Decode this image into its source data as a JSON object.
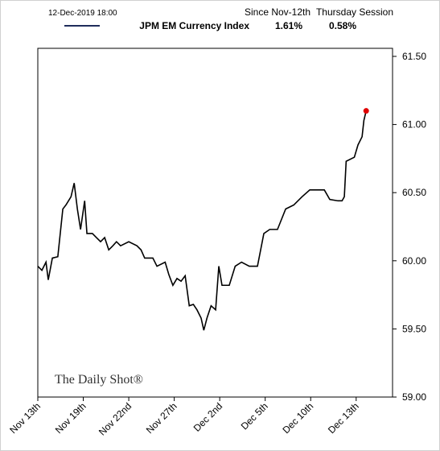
{
  "chart_data": {
    "type": "line",
    "timestamp": "12-Dec-2019 18:00",
    "headers": [
      "Since Nov-12th",
      "Thursday Session"
    ],
    "changes": [
      "1.61%",
      "0.58%"
    ],
    "watermark": "The Daily Shot®",
    "legend_color": "#1f2d5c",
    "last_point_color": "#e00000",
    "xlim": [
      0,
      7.8
    ],
    "xticks": [
      {
        "value": 0,
        "label": "Nov 13th"
      },
      {
        "value": 1,
        "label": "Nov 19th"
      },
      {
        "value": 2,
        "label": "Nov 22nd"
      },
      {
        "value": 3,
        "label": "Nov 27th"
      },
      {
        "value": 4,
        "label": "Dec 2nd"
      },
      {
        "value": 5,
        "label": "Dec 5th"
      },
      {
        "value": 6,
        "label": "Dec 10th"
      },
      {
        "value": 7,
        "label": "Dec 13th"
      }
    ],
    "ylim": [
      59,
      61.5
    ],
    "yticks": [
      {
        "value": 59,
        "label": "59.00"
      },
      {
        "value": 59.5,
        "label": "59.50"
      },
      {
        "value": 60,
        "label": "60.00"
      },
      {
        "value": 60.5,
        "label": "60.50"
      },
      {
        "value": 61,
        "label": "61.00"
      },
      {
        "value": 61.5,
        "label": "61.50"
      }
    ],
    "x": [
      0,
      0.09,
      0.18,
      0.23,
      0.32,
      0.44,
      0.55,
      0.62,
      0.73,
      0.8,
      0.87,
      0.94,
      1.03,
      1.08,
      1.2,
      1.29,
      1.38,
      1.47,
      1.56,
      1.65,
      1.73,
      1.82,
      2.0,
      2.18,
      2.27,
      2.35,
      2.53,
      2.62,
      2.8,
      2.88,
      2.97,
      3.06,
      3.15,
      3.24,
      3.33,
      3.42,
      3.5,
      3.59,
      3.65,
      3.72,
      3.81,
      3.91,
      3.98,
      4.05,
      4.21,
      4.34,
      4.48,
      4.65,
      4.83,
      4.97,
      5.1,
      5.27,
      5.45,
      5.63,
      5.81,
      5.98,
      6.16,
      6.3,
      6.42,
      6.6,
      6.69,
      6.74,
      6.78,
      6.96,
      7.04,
      7.13,
      7.17,
      7.22
    ],
    "series": [
      {
        "name": "JPM EM Currency Index",
        "color": "#000000",
        "values": [
          59.96,
          59.93,
          59.99,
          59.86,
          60.02,
          60.03,
          60.38,
          60.41,
          60.47,
          60.57,
          60.38,
          60.23,
          60.44,
          60.2,
          60.2,
          60.17,
          60.14,
          60.17,
          60.08,
          60.11,
          60.14,
          60.11,
          60.14,
          60.11,
          60.08,
          60.02,
          60.02,
          59.96,
          59.99,
          59.9,
          59.82,
          59.87,
          59.85,
          59.89,
          59.67,
          59.68,
          59.64,
          59.58,
          59.49,
          59.58,
          59.67,
          59.64,
          59.96,
          59.82,
          59.82,
          59.96,
          59.99,
          59.96,
          59.96,
          60.2,
          60.23,
          60.23,
          60.38,
          60.41,
          60.47,
          60.52,
          60.52,
          60.52,
          60.45,
          60.44,
          60.44,
          60.47,
          60.73,
          60.76,
          60.85,
          60.91,
          61.03,
          61.1
        ]
      }
    ]
  }
}
